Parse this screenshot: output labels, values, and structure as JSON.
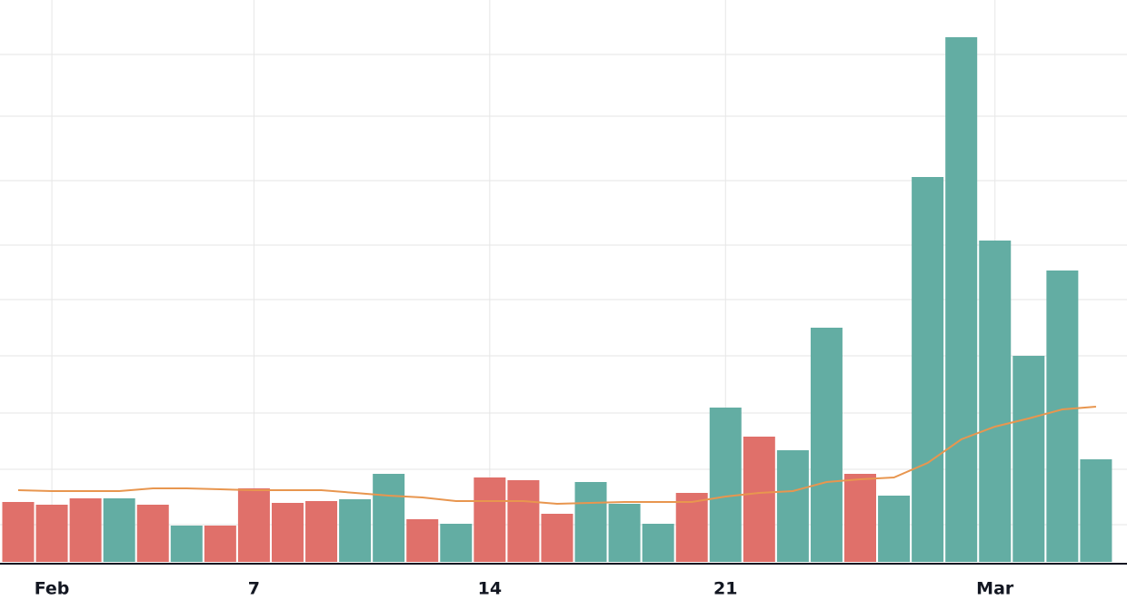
{
  "chart_data": {
    "type": "bar",
    "categories": [
      null,
      "Feb",
      null,
      null,
      null,
      null,
      null,
      "7",
      null,
      null,
      null,
      null,
      null,
      null,
      "14",
      null,
      null,
      null,
      null,
      null,
      null,
      "21",
      null,
      null,
      null,
      null,
      null,
      null,
      null,
      "Mar",
      null,
      null,
      null
    ],
    "values": [
      6.6,
      6.3,
      7,
      7,
      6.3,
      4,
      4,
      8.1,
      6.5,
      6.7,
      6.9,
      9.7,
      4.7,
      4.2,
      9.3,
      9,
      5.3,
      8.8,
      6.4,
      4.2,
      7.6,
      17,
      13.8,
      12.3,
      25.8,
      9.7,
      7.3,
      42.4,
      57.8,
      35.4,
      22.7,
      32.1,
      11.3
    ],
    "bar_colors": [
      "#e0706a",
      "#e0706a",
      "#e0706a",
      "#63ada3",
      "#e0706a",
      "#63ada3",
      "#e0706a",
      "#e0706a",
      "#e0706a",
      "#e0706a",
      "#63ada3",
      "#63ada3",
      "#e0706a",
      "#63ada3",
      "#e0706a",
      "#e0706a",
      "#e0706a",
      "#63ada3",
      "#63ada3",
      "#63ada3",
      "#e0706a",
      "#63ada3",
      "#e0706a",
      "#63ada3",
      "#63ada3",
      "#e0706a",
      "#63ada3",
      "#63ada3",
      "#63ada3",
      "#63ada3",
      "#63ada3",
      "#63ada3",
      "#63ada3"
    ],
    "moving_average": {
      "color": "#e8964f",
      "values": [
        7.9,
        7.8,
        7.8,
        7.8,
        8.1,
        8.1,
        8.0,
        7.9,
        7.9,
        7.9,
        7.6,
        7.3,
        7.1,
        6.7,
        6.7,
        6.7,
        6.4,
        6.5,
        6.6,
        6.6,
        6.6,
        7.2,
        7.6,
        7.8,
        8.8,
        9.1,
        9.3,
        10.9,
        13.5,
        14.9,
        15.8,
        16.8,
        17.1
      ]
    },
    "ylim": [
      0,
      61.9
    ],
    "yticks": [
      4.1,
      10.2,
      16.4,
      22.7,
      28.9,
      34.9,
      42,
      49.1,
      55.9
    ],
    "grid": true
  }
}
